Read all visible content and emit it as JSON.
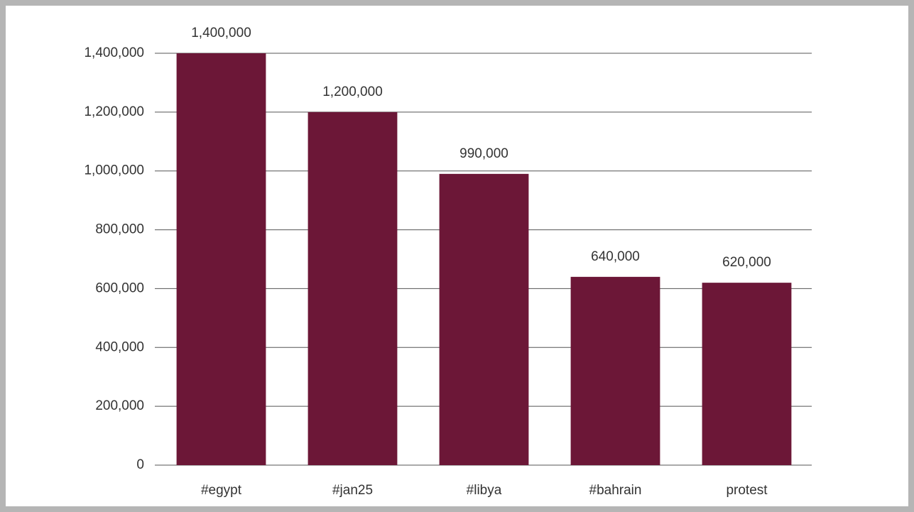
{
  "chart_data": {
    "type": "bar",
    "categories": [
      "#egypt",
      "#jan25",
      "#libya",
      "#bahrain",
      "protest"
    ],
    "values": [
      1400000,
      1200000,
      990000,
      640000,
      620000
    ],
    "value_labels": [
      "1,400,000",
      "1,200,000",
      "990,000",
      "640,000",
      "620,000"
    ],
    "color": "#6c1737",
    "ylim": [
      0,
      1400000
    ],
    "yticks": [
      0,
      {
        "value": 200000,
        "label": "200,000"
      },
      {
        "value": 400000,
        "label": "400,000"
      },
      {
        "value": 600000,
        "label": "600,000"
      },
      {
        "value": 800000,
        "label": "800,000"
      },
      {
        "value": 1000000,
        "label": "1,000,000"
      },
      {
        "value": 1200000,
        "label": "1,200,000"
      },
      {
        "value": 1400000,
        "label": "1,400,000"
      }
    ],
    "grid": true
  }
}
